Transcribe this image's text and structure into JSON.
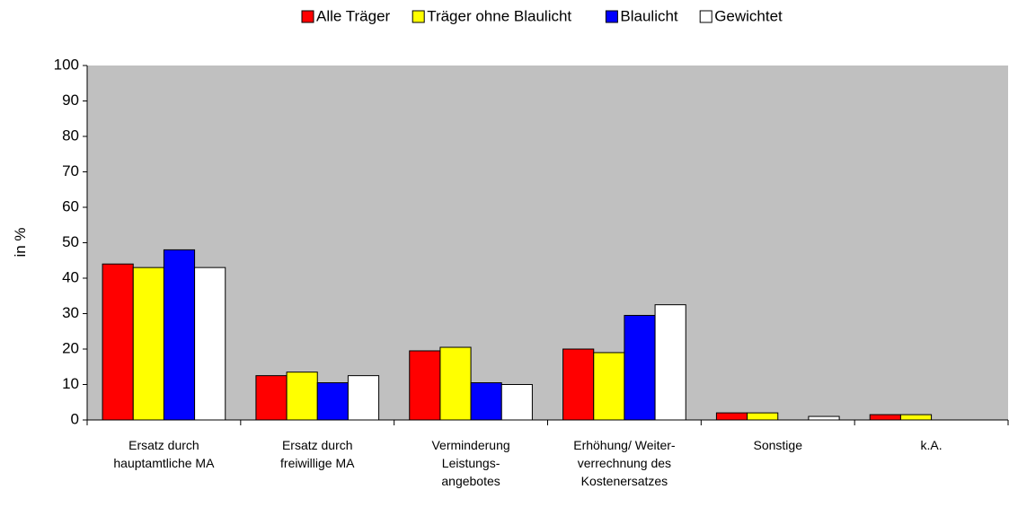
{
  "chart_data": {
    "type": "bar",
    "y_label": "in %",
    "categories": [
      "Ersatz durch\nhauptamtliche MA",
      "Ersatz durch\nfreiwillige MA",
      "Verminderung\nLeistungs-\nangebotes",
      "Erhöhung/ Weiter-\nverrechnung des\nKostenersatzes",
      "Sonstige",
      "k.A."
    ],
    "series": [
      {
        "name": "Alle Träger",
        "color": "#ff0000",
        "values": [
          44,
          12.5,
          19.5,
          20,
          2,
          1.5
        ]
      },
      {
        "name": "Träger ohne Blaulicht",
        "color": "#ffff00",
        "values": [
          43,
          13.5,
          20.5,
          19,
          2,
          1.5
        ]
      },
      {
        "name": "Blaulicht",
        "color": "#0000ff",
        "values": [
          48,
          10.5,
          10.5,
          29.5,
          null,
          null
        ]
      },
      {
        "name": "Gewichtet",
        "color": "#ffffff",
        "values": [
          43,
          12.5,
          10,
          32.5,
          1,
          null
        ]
      }
    ],
    "ylim": [
      0,
      100
    ],
    "yticks": [
      0,
      10,
      20,
      30,
      40,
      50,
      60,
      70,
      80,
      90,
      100
    ],
    "grid": false,
    "legend": "top",
    "plot_background": "#c0c0c0"
  }
}
